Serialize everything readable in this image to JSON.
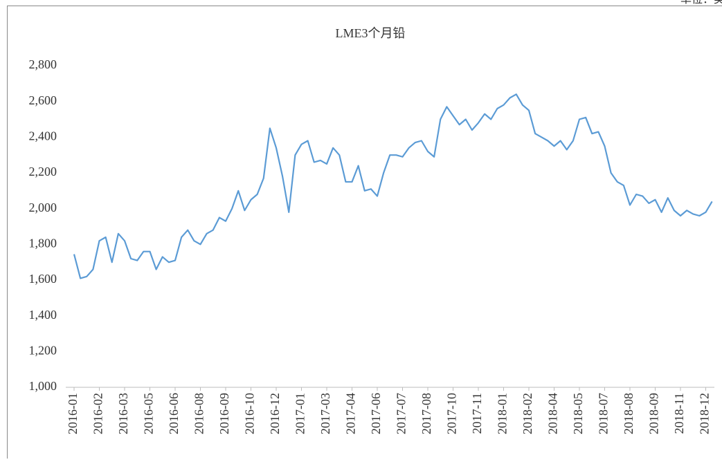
{
  "chart_data": {
    "type": "line",
    "title": "LME3个月铅",
    "unit": "单位：美元/吨",
    "categories": [
      "2016-01",
      null,
      null,
      null,
      "2016-02",
      null,
      null,
      null,
      "2016-03",
      null,
      null,
      null,
      "2016-05",
      null,
      null,
      null,
      "2016-06",
      null,
      null,
      null,
      "2016-08",
      null,
      null,
      null,
      "2016-09",
      null,
      null,
      null,
      "2016-10",
      null,
      null,
      null,
      "2016-12",
      null,
      null,
      null,
      "2017-01",
      null,
      null,
      null,
      "2017-03",
      null,
      null,
      null,
      "2017-04",
      null,
      null,
      null,
      "2017-06",
      null,
      null,
      null,
      "2017-07",
      null,
      null,
      null,
      "2017-08",
      null,
      null,
      null,
      "2017-10",
      null,
      null,
      null,
      "2017-11",
      null,
      null,
      null,
      "2018-01",
      null,
      null,
      null,
      "2018-02",
      null,
      null,
      null,
      "2018-04",
      null,
      null,
      null,
      "2018-05",
      null,
      null,
      null,
      "2018-07",
      null,
      null,
      null,
      "2018-08",
      null,
      null,
      null,
      "2018-09",
      null,
      null,
      null,
      "2018-11",
      null,
      null,
      null,
      "2018-12",
      null
    ],
    "series": [
      {
        "name": "LME3个月铅",
        "color": "#5b9bd5",
        "values": [
          1745,
          1610,
          1620,
          1660,
          1820,
          1840,
          1700,
          1860,
          1820,
          1720,
          1710,
          1760,
          1760,
          1660,
          1730,
          1700,
          1710,
          1840,
          1880,
          1820,
          1800,
          1860,
          1880,
          1950,
          1930,
          2000,
          2100,
          1990,
          2050,
          2080,
          2170,
          2450,
          2340,
          2180,
          1980,
          2300,
          2360,
          2380,
          2260,
          2270,
          2250,
          2340,
          2300,
          2150,
          2150,
          2240,
          2100,
          2110,
          2070,
          2200,
          2300,
          2300,
          2290,
          2340,
          2370,
          2380,
          2320,
          2290,
          2500,
          2570,
          2520,
          2470,
          2500,
          2440,
          2480,
          2530,
          2500,
          2560,
          2580,
          2620,
          2640,
          2580,
          2550,
          2420,
          2400,
          2380,
          2350,
          2380,
          2330,
          2380,
          2500,
          2510,
          2420,
          2430,
          2350,
          2200,
          2150,
          2130,
          2020,
          2080,
          2070,
          2030,
          2050,
          1980,
          2060,
          1990,
          1960,
          1990,
          1970,
          1960,
          1980,
          2040
        ]
      }
    ],
    "ylim": [
      1000,
      2800
    ],
    "yticks": [
      {
        "value": 1000,
        "label": "1,000"
      },
      {
        "value": 1200,
        "label": "1,200"
      },
      {
        "value": 1400,
        "label": "1,400"
      },
      {
        "value": 1600,
        "label": "1,600"
      },
      {
        "value": 1800,
        "label": "1,800"
      },
      {
        "value": 2000,
        "label": "2,000"
      },
      {
        "value": 2200,
        "label": "2,200"
      },
      {
        "value": 2400,
        "label": "2,400"
      },
      {
        "value": 2600,
        "label": "2,600"
      },
      {
        "value": 2800,
        "label": "2,800"
      }
    ],
    "grid": false
  }
}
